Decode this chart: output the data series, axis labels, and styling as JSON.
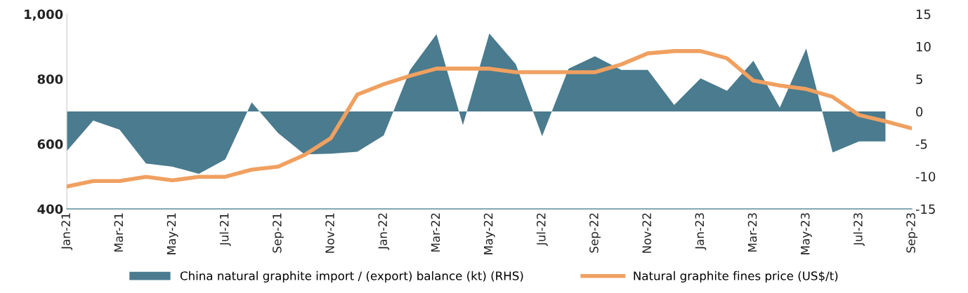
{
  "chart_data": {
    "type": "line",
    "categories": [
      "Jan-21",
      null,
      "Mar-21",
      null,
      "May-21",
      null,
      "Jul-21",
      null,
      "Sep-21",
      null,
      "Nov-21",
      null,
      "Jan-22",
      null,
      "Mar-22",
      null,
      "May-22",
      null,
      "Jul-22",
      null,
      "Sep-22",
      null,
      "Nov-22",
      null,
      "Jan-23",
      null,
      "Mar-23",
      null,
      "May-23",
      null,
      "Jul-23",
      null,
      "Sep-23"
    ],
    "series": [
      {
        "name": "China natural graphite import / (export) balance (kt) (RHS)",
        "type": "area",
        "axis": "y2",
        "color": "#4a7b8e",
        "values": [
          -6.1,
          -1.4,
          -2.8,
          -8.0,
          -8.5,
          -9.6,
          -7.4,
          1.4,
          -3.3,
          -6.6,
          -6.5,
          -6.2,
          -3.7,
          6.4,
          11.9,
          -2.1,
          12.0,
          7.3,
          -3.8,
          6.6,
          8.5,
          6.4,
          6.4,
          1.0,
          5.1,
          3.2,
          7.8,
          0.6,
          9.7,
          -6.3,
          -4.6,
          -4.6,
          null
        ]
      },
      {
        "name": "Natural graphite fines price (US$/t)",
        "axis": "y",
        "color": "#f0a060",
        "values": [
          469,
          486,
          486,
          499,
          488,
          499,
          499,
          521,
          530,
          566,
          618,
          752,
          784,
          810,
          832,
          832,
          832,
          821,
          821,
          821,
          821,
          845,
          879,
          886,
          886,
          864,
          795,
          780,
          769,
          745,
          689,
          670,
          648
        ]
      }
    ],
    "ylim": [
      400,
      1000
    ],
    "yticks": [
      400,
      600,
      800,
      {
        "value": 1000,
        "label": "1,000"
      }
    ],
    "y2lim": [
      -15,
      15
    ],
    "y2ticks": [
      -15,
      -10,
      -5,
      0,
      5,
      10,
      15
    ],
    "grid": false,
    "legend": "bottom"
  }
}
